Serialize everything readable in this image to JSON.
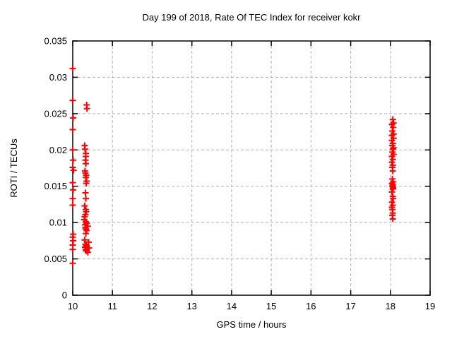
{
  "window": {
    "background": "#ffffff"
  },
  "chart_data": {
    "type": "scatter",
    "title": "Day 199 of 2018, Rate Of TEC Index for receiver kokr",
    "xlabel": "GPS time / hours",
    "ylabel": "ROTI / TECUs",
    "xlim": [
      10,
      19
    ],
    "ylim": [
      0,
      0.035
    ],
    "grid": true,
    "legend": "none",
    "axis_color": "#000000",
    "grid_color": "#b0b0b0",
    "marker": {
      "shape": "plus",
      "color": "#ff0000",
      "size": 9
    },
    "xticks": {
      "values": [
        10,
        11,
        12,
        13,
        14,
        15,
        16,
        17,
        18,
        19
      ],
      "labels": [
        "10",
        "11",
        "12",
        "13",
        "14",
        "15",
        "16",
        "17",
        "18",
        "19"
      ]
    },
    "yticks": {
      "values": [
        0,
        0.005,
        0.01,
        0.015,
        0.02,
        0.025,
        0.03,
        0.035
      ],
      "labels": [
        "0",
        "0.005",
        "0.01",
        "0.015",
        "0.02",
        "0.025",
        "0.03",
        "0.035"
      ]
    },
    "series": [
      {
        "name": "ROTI",
        "points": [
          [
            10.0,
            0.0312
          ],
          [
            10.0,
            0.0268
          ],
          [
            10.01,
            0.0244
          ],
          [
            10.0,
            0.0228
          ],
          [
            10.0,
            0.02
          ],
          [
            10.01,
            0.0186
          ],
          [
            10.0,
            0.0176
          ],
          [
            10.02,
            0.0172
          ],
          [
            10.0,
            0.0155
          ],
          [
            10.01,
            0.0145
          ],
          [
            10.0,
            0.0133
          ],
          [
            10.0,
            0.0124
          ],
          [
            10.01,
            0.0084
          ],
          [
            10.0,
            0.008
          ],
          [
            10.01,
            0.0075
          ],
          [
            10.0,
            0.0069
          ],
          [
            10.0,
            0.0063
          ],
          [
            10.0,
            0.0044
          ],
          [
            10.35,
            0.0262
          ],
          [
            10.36,
            0.0257
          ],
          [
            10.3,
            0.0206
          ],
          [
            10.31,
            0.0201
          ],
          [
            10.33,
            0.0195
          ],
          [
            10.33,
            0.0191
          ],
          [
            10.32,
            0.0186
          ],
          [
            10.33,
            0.0181
          ],
          [
            10.31,
            0.0171
          ],
          [
            10.32,
            0.0168
          ],
          [
            10.34,
            0.0165
          ],
          [
            10.33,
            0.0162
          ],
          [
            10.35,
            0.0157
          ],
          [
            10.34,
            0.0154
          ],
          [
            10.32,
            0.0141
          ],
          [
            10.33,
            0.0133
          ],
          [
            10.3,
            0.0123
          ],
          [
            10.33,
            0.0118
          ],
          [
            10.34,
            0.0115
          ],
          [
            10.32,
            0.0111
          ],
          [
            10.3,
            0.0108
          ],
          [
            10.29,
            0.0104
          ],
          [
            10.33,
            0.0101
          ],
          [
            10.35,
            0.0099
          ],
          [
            10.31,
            0.0097
          ],
          [
            10.38,
            0.0095
          ],
          [
            10.32,
            0.0093
          ],
          [
            10.33,
            0.0091
          ],
          [
            10.35,
            0.0089
          ],
          [
            10.33,
            0.0085
          ],
          [
            10.3,
            0.0076
          ],
          [
            10.4,
            0.0073
          ],
          [
            10.32,
            0.007
          ],
          [
            10.34,
            0.0068
          ],
          [
            10.31,
            0.0066
          ],
          [
            10.41,
            0.0065
          ],
          [
            10.33,
            0.0063
          ],
          [
            10.34,
            0.0061
          ],
          [
            10.38,
            0.0059
          ],
          [
            18.06,
            0.0242
          ],
          [
            18.08,
            0.0237
          ],
          [
            18.04,
            0.0235
          ],
          [
            18.07,
            0.0231
          ],
          [
            18.05,
            0.0226
          ],
          [
            18.08,
            0.0222
          ],
          [
            18.04,
            0.022
          ],
          [
            18.08,
            0.0216
          ],
          [
            18.04,
            0.0213
          ],
          [
            18.06,
            0.0209
          ],
          [
            18.05,
            0.0206
          ],
          [
            18.08,
            0.0203
          ],
          [
            18.06,
            0.0201
          ],
          [
            18.05,
            0.0197
          ],
          [
            18.08,
            0.0194
          ],
          [
            18.04,
            0.0191
          ],
          [
            18.06,
            0.0187
          ],
          [
            18.04,
            0.0183
          ],
          [
            18.06,
            0.0179
          ],
          [
            18.05,
            0.0176
          ],
          [
            18.06,
            0.0171
          ],
          [
            18.05,
            0.016
          ],
          [
            18.07,
            0.0156
          ],
          [
            18.04,
            0.0154
          ],
          [
            18.06,
            0.0152
          ],
          [
            18.05,
            0.015
          ],
          [
            18.07,
            0.0148
          ],
          [
            18.06,
            0.0146
          ],
          [
            18.04,
            0.0142
          ],
          [
            18.06,
            0.0136
          ],
          [
            18.07,
            0.0133
          ],
          [
            18.04,
            0.0128
          ],
          [
            18.06,
            0.0124
          ],
          [
            18.04,
            0.0121
          ],
          [
            18.05,
            0.0118
          ],
          [
            18.06,
            0.0113
          ],
          [
            18.05,
            0.011
          ],
          [
            18.06,
            0.0105
          ]
        ]
      }
    ]
  }
}
